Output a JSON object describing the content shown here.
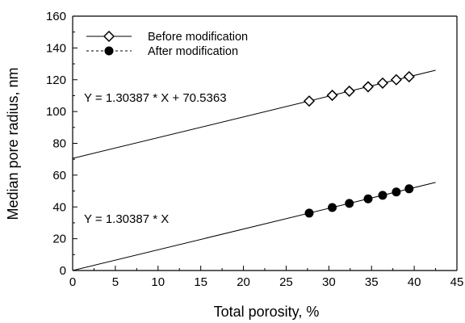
{
  "chart_data": {
    "type": "scatter",
    "xlabel": "Total porosity, %",
    "ylabel": "Median pore radius, nm",
    "xlim": [
      0,
      45
    ],
    "ylim": [
      0,
      160
    ],
    "x_ticks": [
      "0",
      "5",
      "10",
      "15",
      "20",
      "25",
      "30",
      "35",
      "40",
      "45"
    ],
    "y_ticks": [
      "0",
      "20",
      "40",
      "60",
      "80",
      "100",
      "120",
      "140",
      "160"
    ],
    "grid": false,
    "legend_position": "top-left",
    "series": [
      {
        "name": "Before modification",
        "marker": "open-diamond",
        "x": [
          27.7,
          30.4,
          32.4,
          34.6,
          36.3,
          37.9,
          39.4
        ],
        "y": [
          106.6,
          110.2,
          112.8,
          115.6,
          117.9,
          120.0,
          121.9
        ]
      },
      {
        "name": "After modification",
        "marker": "filled-circle",
        "x": [
          27.7,
          30.4,
          32.4,
          34.6,
          36.3,
          37.9,
          39.4
        ],
        "y": [
          36.1,
          39.6,
          42.2,
          45.1,
          47.3,
          49.4,
          51.4
        ]
      }
    ],
    "fit_lines": [
      {
        "slope": 1.30387,
        "intercept": 70.5363,
        "x_range": [
          0,
          42.5
        ]
      },
      {
        "slope": 1.30387,
        "intercept": 0,
        "x_range": [
          0,
          42.5
        ]
      }
    ],
    "annotations": [
      {
        "text": "Y = 1.30387 * X + 70.5363"
      },
      {
        "text": "Y = 1.30387 * X"
      }
    ]
  }
}
